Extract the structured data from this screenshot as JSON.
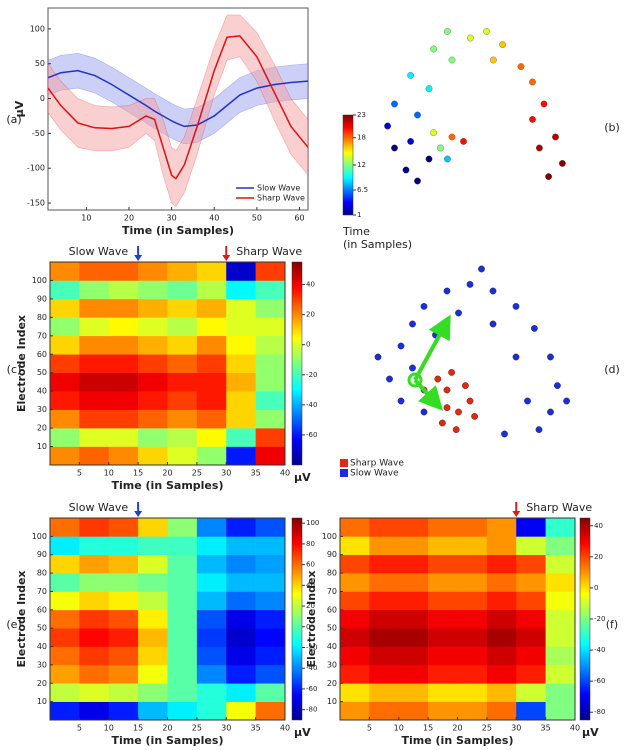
{
  "chart_data": [
    {
      "type": "line",
      "panel_label": "(a)",
      "xlabel": "Time (in Samples)",
      "ylabel": "μV",
      "x": [
        1,
        4,
        8,
        12,
        16,
        20,
        24,
        26,
        28,
        30,
        31,
        33,
        36,
        40,
        43,
        46,
        50,
        54,
        58,
        62
      ],
      "xlim": [
        1,
        62
      ],
      "xticks": [
        10,
        20,
        30,
        40,
        50,
        60
      ],
      "ylim": [
        -160,
        130
      ],
      "yticks": [
        -150,
        -100,
        -50,
        0,
        50,
        100
      ],
      "series": [
        {
          "name": "Slow Wave",
          "color": "#2233cc",
          "band_color": "#9aa0ee",
          "values": [
            30,
            37,
            40,
            33,
            20,
            5,
            -10,
            -18,
            -25,
            -32,
            -35,
            -40,
            -38,
            -25,
            -10,
            5,
            15,
            20,
            23,
            25
          ],
          "lower": [
            5,
            12,
            15,
            8,
            -5,
            -20,
            -35,
            -43,
            -50,
            -57,
            -60,
            -65,
            -63,
            -50,
            -35,
            -20,
            -10,
            -5,
            -2,
            0
          ],
          "upper": [
            55,
            62,
            65,
            58,
            45,
            30,
            15,
            7,
            0,
            -7,
            -10,
            -15,
            -13,
            0,
            15,
            30,
            40,
            45,
            48,
            50
          ]
        },
        {
          "name": "Sharp Wave",
          "color": "#dd1111",
          "band_color": "#f3a0a0",
          "values": [
            15,
            -10,
            -35,
            -42,
            -43,
            -40,
            -25,
            -30,
            -70,
            -110,
            -115,
            -95,
            -40,
            40,
            88,
            90,
            60,
            10,
            -40,
            -70
          ],
          "lower": [
            -20,
            -45,
            -70,
            -75,
            -75,
            -70,
            -50,
            -60,
            -110,
            -150,
            -155,
            -135,
            -80,
            5,
            55,
            60,
            25,
            -30,
            -80,
            -110
          ],
          "upper": [
            50,
            25,
            0,
            -10,
            -12,
            -10,
            0,
            0,
            -30,
            -70,
            -75,
            -55,
            0,
            75,
            120,
            120,
            95,
            50,
            0,
            -30
          ]
        }
      ]
    },
    {
      "type": "scatter",
      "panel_label": "(b)",
      "colorbar_label": [
        "Time",
        "(in Samples)"
      ],
      "clim": [
        1,
        23
      ],
      "cticks": [
        1,
        6.5,
        12,
        18,
        23
      ],
      "xlim": [
        0,
        100
      ],
      "ylim": [
        0,
        100
      ],
      "x": [
        20,
        25,
        15,
        30,
        12,
        22,
        15,
        25,
        22,
        30,
        32,
        40,
        38,
        48,
        55,
        62,
        58,
        70,
        75,
        80,
        75,
        85,
        78,
        88,
        82,
        35,
        40,
        38,
        45,
        32
      ],
      "y": [
        25,
        20,
        35,
        30,
        45,
        38,
        55,
        50,
        68,
        62,
        80,
        75,
        88,
        85,
        88,
        82,
        75,
        72,
        65,
        55,
        48,
        40,
        35,
        28,
        22,
        35,
        40,
        30,
        38,
        42
      ],
      "values": [
        1,
        1,
        1,
        1,
        3,
        3,
        6,
        6,
        9,
        9,
        12,
        12,
        12,
        14,
        14,
        16,
        16,
        18,
        18,
        20,
        20,
        22,
        22,
        23,
        23,
        12,
        18,
        8,
        20,
        14
      ]
    },
    {
      "type": "heatmap",
      "panel_label": "(c)",
      "xlabel": "Time (in Samples)",
      "ylabel": "Electrode Index",
      "colorbar_label": "μV",
      "annotations": [
        {
          "text": "Slow Wave",
          "x": 15,
          "color": "#1f3fd0",
          "side": "left"
        },
        {
          "text": "Sharp Wave",
          "x": 30,
          "color": "#d01f1f",
          "side": "right"
        }
      ],
      "xlim": [
        0,
        40
      ],
      "xticks": [
        5,
        10,
        15,
        20,
        25,
        30,
        35,
        40
      ],
      "ylim": [
        0,
        110
      ],
      "yticks": [
        10,
        20,
        30,
        40,
        50,
        60,
        70,
        80,
        90,
        100
      ],
      "clim": [
        -80,
        55
      ],
      "cticks": [
        -60,
        -40,
        -20,
        0,
        20,
        40
      ],
      "x": [
        2.5,
        7.5,
        12.5,
        17.5,
        22.5,
        27.5,
        32.5,
        37.5
      ],
      "y": [
        5,
        15,
        25,
        35,
        45,
        55,
        65,
        75,
        85,
        95,
        105
      ],
      "z": [
        [
          20,
          25,
          20,
          10,
          0,
          -10,
          -60,
          40
        ],
        [
          -10,
          0,
          0,
          -10,
          -5,
          5,
          -20,
          30
        ],
        [
          20,
          30,
          30,
          25,
          20,
          25,
          10,
          -10
        ],
        [
          35,
          40,
          40,
          35,
          30,
          35,
          10,
          -20
        ],
        [
          40,
          45,
          45,
          40,
          35,
          35,
          15,
          -10
        ],
        [
          30,
          35,
          35,
          30,
          25,
          30,
          10,
          -10
        ],
        [
          10,
          20,
          20,
          15,
          10,
          20,
          5,
          -5
        ],
        [
          -10,
          0,
          5,
          0,
          -5,
          5,
          0,
          0
        ],
        [
          10,
          20,
          20,
          15,
          10,
          15,
          0,
          -10
        ],
        [
          -20,
          -10,
          -5,
          -10,
          -15,
          -5,
          -30,
          -20
        ],
        [
          20,
          25,
          25,
          20,
          15,
          10,
          -70,
          30
        ]
      ]
    },
    {
      "type": "scatter",
      "panel_label": "(d)",
      "xlim": [
        0,
        100
      ],
      "ylim": [
        0,
        100
      ],
      "series": [
        {
          "name": "Sharp Wave",
          "color": "#dd2a10",
          "x": [
            35,
            40,
            45,
            38,
            48,
            42,
            30,
            50,
            44,
            36,
            52,
            40
          ],
          "y": [
            35,
            40,
            30,
            25,
            42,
            48,
            40,
            35,
            22,
            45,
            28,
            32
          ]
        },
        {
          "name": "Slow Wave",
          "color": "#1c2fd6",
          "x": [
            15,
            20,
            25,
            30,
            40,
            50,
            60,
            70,
            78,
            85,
            88,
            85,
            80,
            75,
            70,
            60,
            45,
            35,
            25,
            20,
            30,
            10,
            55,
            92,
            65
          ],
          "y": [
            45,
            60,
            70,
            78,
            85,
            88,
            85,
            78,
            68,
            55,
            42,
            30,
            22,
            35,
            55,
            70,
            75,
            65,
            50,
            35,
            30,
            55,
            95,
            35,
            20
          ]
        }
      ]
    },
    {
      "type": "heatmap",
      "panel_label": "(e)",
      "xlabel": "Time (in Samples)",
      "ylabel": "Electrode Index",
      "colorbar_label": "μV",
      "annotations": [
        {
          "text": "Slow Wave",
          "x": 15,
          "color": "#1f3fd0",
          "side": "left"
        }
      ],
      "xlim": [
        0,
        40
      ],
      "xticks": [
        5,
        10,
        15,
        20,
        25,
        30,
        35,
        40
      ],
      "ylim": [
        0,
        110
      ],
      "yticks": [
        10,
        20,
        30,
        40,
        50,
        60,
        70,
        80,
        90,
        100
      ],
      "clim": [
        -90,
        105
      ],
      "cticks": [
        -80,
        -60,
        -40,
        -20,
        0,
        20,
        40,
        60,
        80,
        100
      ],
      "x": [
        2.5,
        7.5,
        12.5,
        17.5,
        22.5,
        27.5,
        32.5,
        37.5
      ],
      "y": [
        5,
        15,
        25,
        35,
        45,
        55,
        65,
        75,
        85,
        95,
        105
      ],
      "z": [
        [
          -60,
          -70,
          -60,
          -30,
          -20,
          -10,
          30,
          60
        ],
        [
          20,
          25,
          20,
          10,
          0,
          -10,
          -20,
          0
        ],
        [
          50,
          60,
          55,
          30,
          0,
          -40,
          -60,
          -50
        ],
        [
          60,
          70,
          65,
          40,
          0,
          -50,
          -70,
          -60
        ],
        [
          70,
          80,
          75,
          45,
          0,
          -55,
          -75,
          -65
        ],
        [
          60,
          70,
          65,
          35,
          0,
          -50,
          -70,
          -60
        ],
        [
          30,
          40,
          35,
          20,
          0,
          -30,
          -45,
          -40
        ],
        [
          0,
          10,
          10,
          5,
          0,
          -20,
          -30,
          -30
        ],
        [
          40,
          50,
          45,
          25,
          0,
          -30,
          -40,
          -35
        ],
        [
          -20,
          -10,
          -10,
          -5,
          -5,
          -20,
          -30,
          -30
        ],
        [
          60,
          70,
          65,
          40,
          10,
          -40,
          -60,
          -50
        ]
      ]
    },
    {
      "type": "heatmap",
      "panel_label": "(f)",
      "xlabel": "Time (in Samples)",
      "ylabel": "Electrode Index",
      "colorbar_label": "μV",
      "annotations": [
        {
          "text": "Sharp Wave",
          "x": 30,
          "color": "#d01f1f",
          "side": "right"
        }
      ],
      "xlim": [
        0,
        40
      ],
      "xticks": [
        5,
        10,
        15,
        20,
        25,
        30,
        35,
        40
      ],
      "ylim": [
        0,
        110
      ],
      "yticks": [
        10,
        20,
        30,
        40,
        50,
        60,
        70,
        80,
        90,
        100
      ],
      "clim": [
        -85,
        45
      ],
      "cticks": [
        -80,
        -60,
        -40,
        -20,
        0,
        20,
        40
      ],
      "x": [
        2.5,
        7.5,
        12.5,
        17.5,
        22.5,
        27.5,
        32.5,
        37.5
      ],
      "y": [
        5,
        15,
        25,
        35,
        45,
        55,
        65,
        75,
        85,
        95,
        105
      ],
      "z": [
        [
          10,
          15,
          15,
          10,
          10,
          15,
          -60,
          -20
        ],
        [
          0,
          5,
          5,
          0,
          0,
          5,
          -10,
          -20
        ],
        [
          25,
          30,
          30,
          25,
          25,
          30,
          25,
          -10
        ],
        [
          30,
          35,
          35,
          30,
          30,
          35,
          30,
          -15
        ],
        [
          35,
          40,
          40,
          35,
          35,
          40,
          35,
          -10
        ],
        [
          30,
          35,
          35,
          30,
          30,
          35,
          30,
          -10
        ],
        [
          20,
          25,
          25,
          20,
          20,
          25,
          20,
          -5
        ],
        [
          10,
          15,
          15,
          10,
          10,
          15,
          10,
          0
        ],
        [
          20,
          25,
          25,
          20,
          20,
          25,
          20,
          -10
        ],
        [
          0,
          10,
          10,
          5,
          5,
          10,
          -10,
          -20
        ],
        [
          15,
          20,
          20,
          15,
          15,
          10,
          -70,
          -30
        ]
      ]
    }
  ]
}
